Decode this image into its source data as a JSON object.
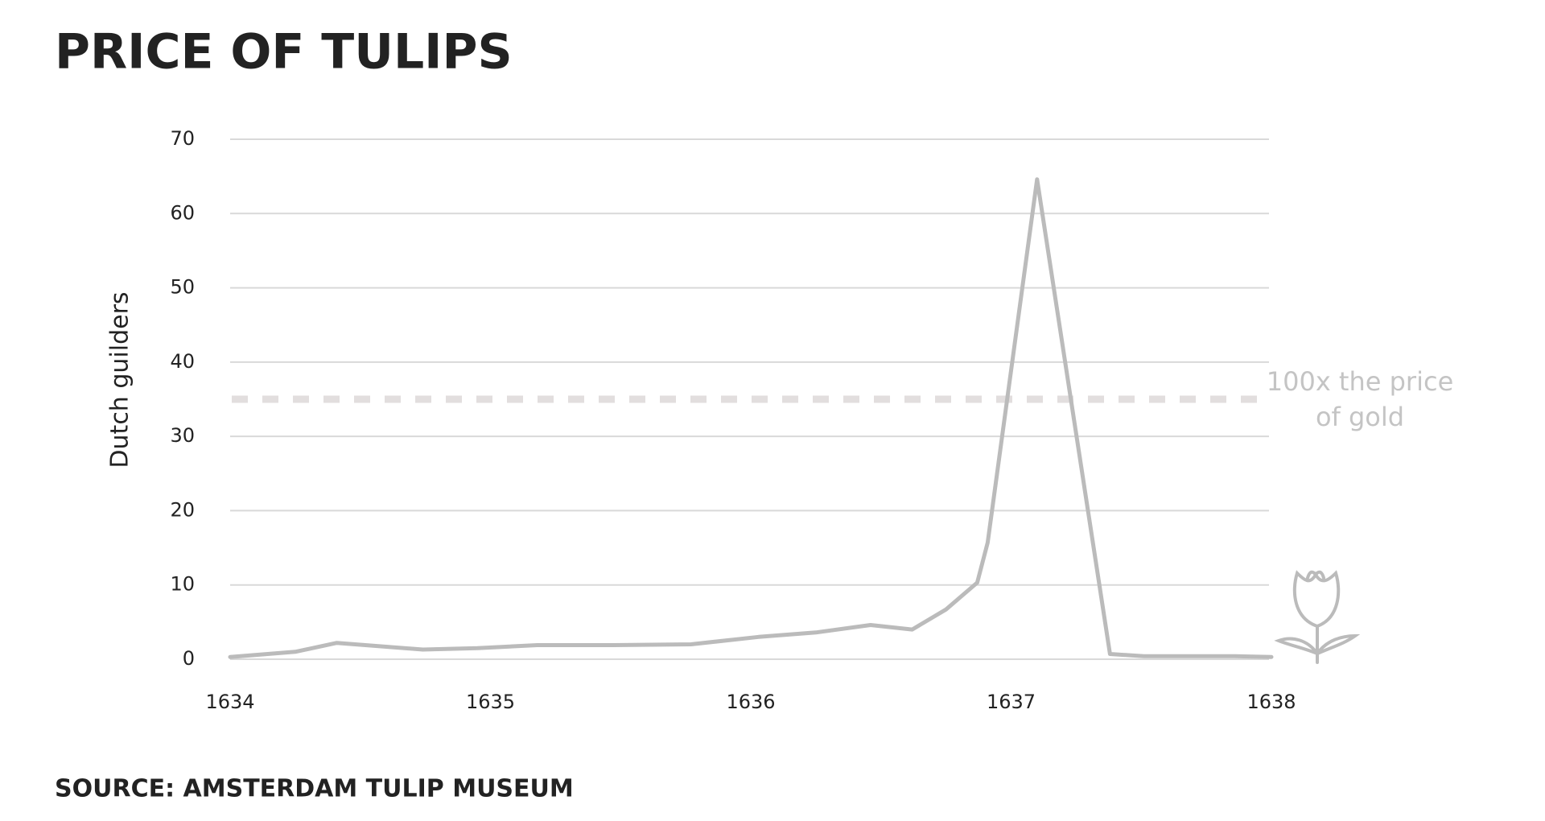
{
  "chart_data": {
    "type": "line",
    "title": "PRICE OF TULIPS",
    "source": "SOURCE: AMSTERDAM TULIP MUSEUM",
    "y_label": "Dutch guilders",
    "x": [
      1634.0,
      1634.25,
      1634.41,
      1634.74,
      1634.95,
      1635.18,
      1635.47,
      1635.77,
      1636.03,
      1636.25,
      1636.46,
      1636.62,
      1636.75,
      1636.87,
      1636.91,
      1637.1,
      1637.38,
      1637.51,
      1637.86,
      1638.0
    ],
    "values": [
      0.3,
      1,
      2.2,
      1.3,
      1.5,
      1.9,
      1.9,
      2.0,
      3.0,
      3.6,
      4.6,
      4.0,
      6.7,
      10.3,
      15.7,
      64.6,
      0.7,
      0.4,
      0.4,
      0.3
    ],
    "color": "#bbbbbb",
    "xlim": [
      1634,
      1638
    ],
    "xticks": [
      1634,
      1635,
      1636,
      1637,
      1638
    ],
    "ylim": [
      0,
      70
    ],
    "yticks": [
      0,
      10,
      20,
      30,
      40,
      50,
      60,
      70
    ],
    "grid": true,
    "reference_line": {
      "value": 35,
      "label": "100x the price of gold",
      "color": "#e2dede"
    }
  }
}
